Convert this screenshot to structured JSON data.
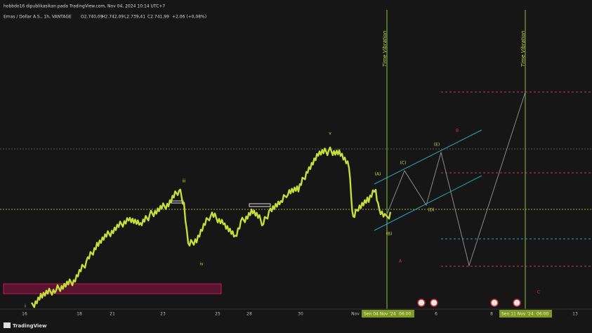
{
  "header": {
    "publish_note": "hobbdo16 dipublikasikan pada TradingView.com, Nov 04, 2024 10:14 UTC+7",
    "symbol": "Emas / Dollar A.S., 1h, VANTAGE",
    "ohlc": [
      "O2.740,09",
      "H2.742,09",
      "L2.739,41",
      "C2.741,99",
      "+2,06 (+0,08%)"
    ]
  },
  "vertical_markers": [
    "Time Vibration",
    "Time Vibration"
  ],
  "wave_labels": [
    "i",
    "iii",
    "iv",
    "v",
    "(A)",
    "(B)",
    "(C)",
    "(D)",
    "(E)",
    "B",
    "A",
    "C"
  ],
  "x_axis": {
    "labels": [
      "16",
      "18",
      "21",
      "23",
      "25",
      "28",
      "30",
      "Nov",
      "6",
      "8",
      "13"
    ],
    "highlighted": [
      {
        "date": "Sen 04 Nov '24",
        "time": "06:00"
      },
      {
        "date": "Sen 11 Nov '24",
        "time": "06:00"
      }
    ]
  },
  "footer": {
    "brand": "TradingView"
  }
}
